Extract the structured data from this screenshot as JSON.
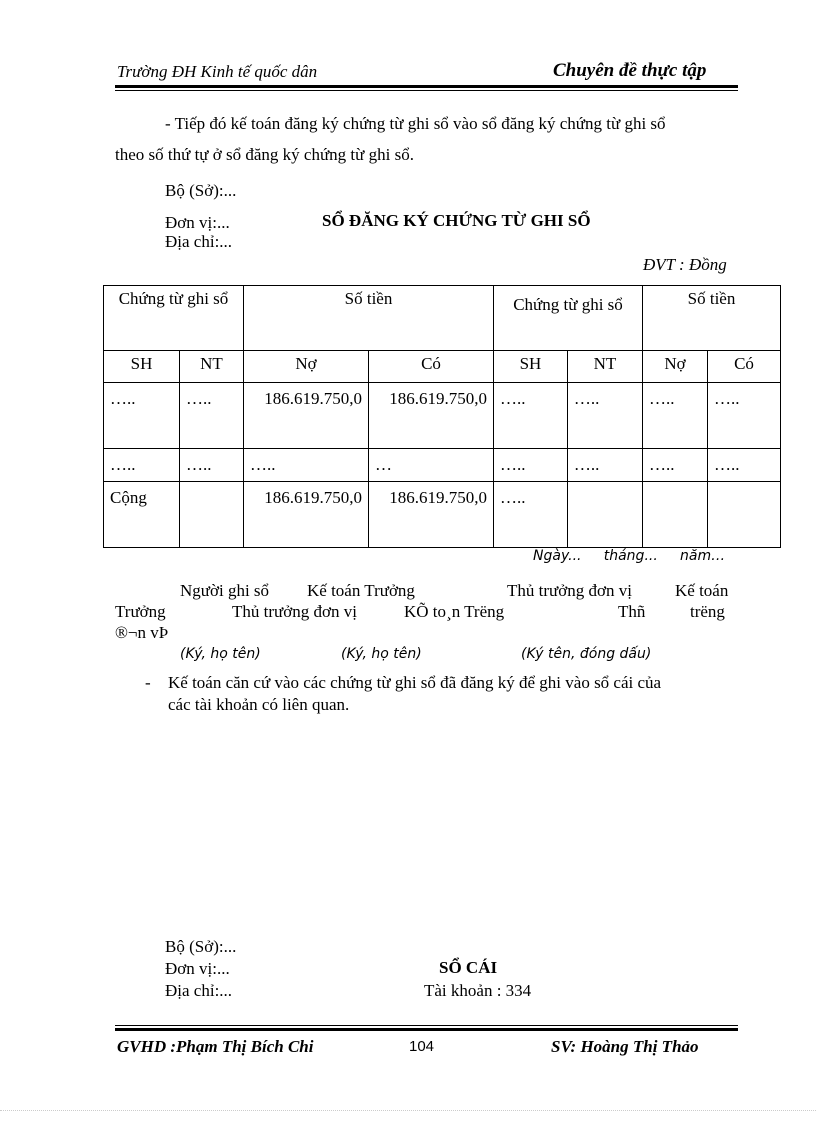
{
  "header": {
    "left": "Trường ĐH Kinh tế quốc dân",
    "right": "Chuyên đề thực tập"
  },
  "intro": {
    "line1": "- Tiếp đó kế toán đăng ký chứng từ ghi sổ vào sổ đăng ký chứng từ ghi sổ",
    "line2": "theo số thứ tự ở sổ đăng ký chứng từ ghi sổ."
  },
  "form1": {
    "bo": "Bộ (Sở):...",
    "don_vi": "Đơn vị:...",
    "dia_chi": "Địa chỉ:...",
    "title": "SỔ ĐĂNG KÝ CHỨNG TỪ GHI SỔ",
    "unit": "ĐVT : Đồng"
  },
  "table": {
    "group_headers": [
      "Chứng từ ghi sổ",
      "Số tiền",
      "Chứng từ ghi sổ",
      "Số tiền"
    ],
    "columns": [
      "SH",
      "NT",
      "Nợ",
      "Có",
      "SH",
      "NT",
      "Nợ",
      "Có"
    ],
    "rows": [
      [
        "…..",
        "…..",
        "186.619.750,0",
        "186.619.750,0",
        "…..",
        "…..",
        "…..",
        "….."
      ],
      [
        "…..",
        "…..",
        "…..",
        "…",
        "…..",
        "…..",
        "…..",
        "….."
      ],
      [
        "Cộng",
        "",
        "186.619.750,0",
        "186.619.750,0",
        "…..",
        "",
        "",
        ""
      ]
    ]
  },
  "date_line": "Ngày...     tháng...     năm…",
  "signatures": {
    "line1": [
      "Người ghi sổ",
      "Kế toán Trưởng",
      "Thủ trưởng đơn vị",
      "Kế toán"
    ],
    "line2": [
      "Trưởng",
      "Thủ trưởng đơn vị",
      "KÕ to¸n Tr­ëng",
      "Thñ",
      "tr­ëng"
    ],
    "line3": "®¬n vÞ",
    "notes": [
      "(Ký, họ tên)",
      "(Ký, họ tên)",
      "(Ký tên, đóng dấu)"
    ]
  },
  "bullet": {
    "marker": "-",
    "line1": "Kế toán căn cứ vào các chứng từ ghi sổ đã đăng ký để ghi vào sổ cái của",
    "line2": "các tài khoản có liên quan."
  },
  "form2": {
    "bo": "Bộ (Sở):...",
    "don_vi": "Đơn vị:...",
    "dia_chi": "Địa chỉ:...",
    "title": "SỔ CÁI",
    "account": "Tài khoản : 334"
  },
  "footer": {
    "left": "GVHD  :Phạm Thị Bích Chi",
    "page": "104",
    "right": "SV: Hoàng Thị Thảo"
  }
}
